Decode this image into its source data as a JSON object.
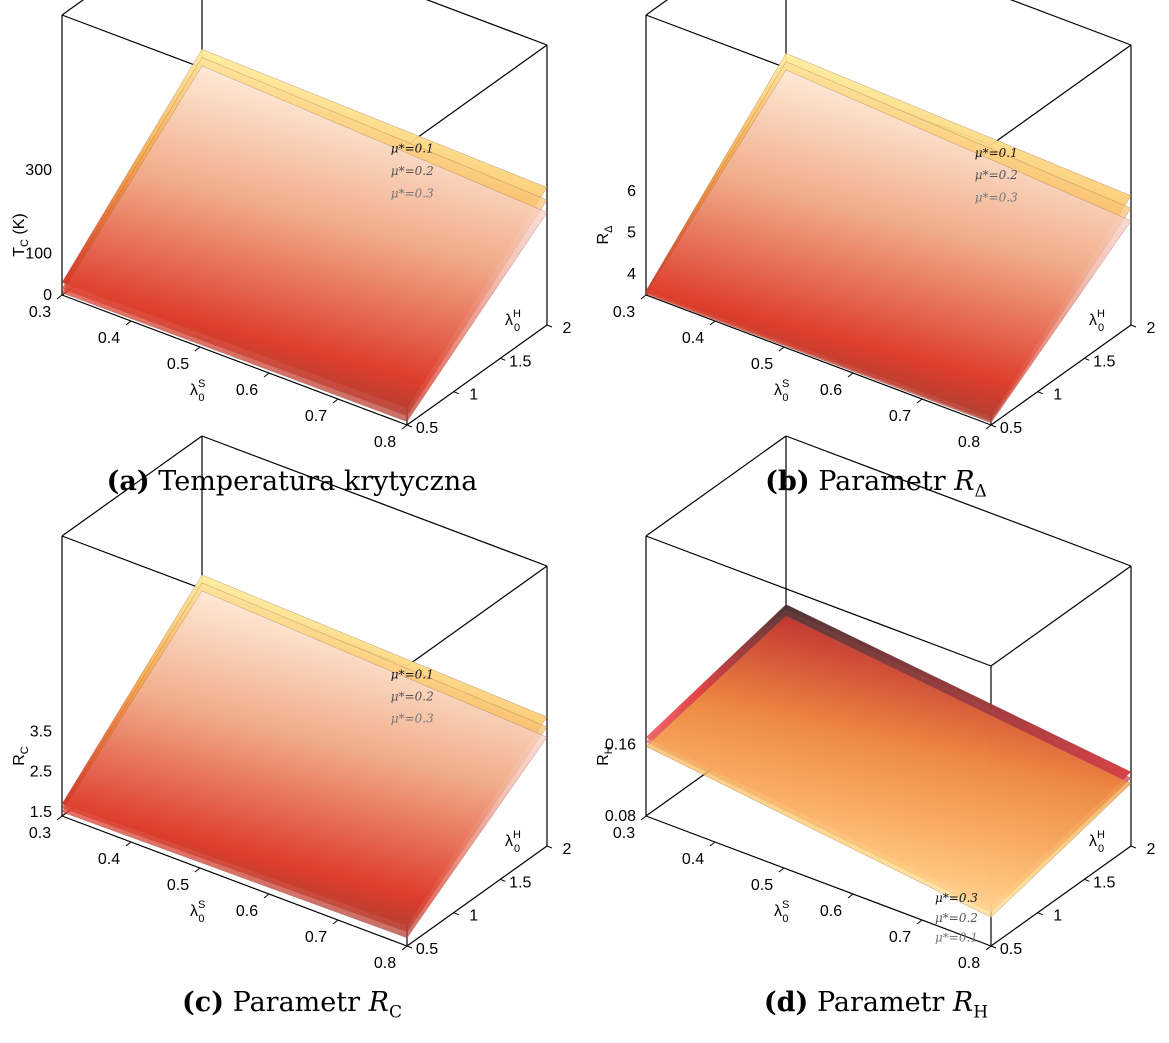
{
  "figure": {
    "panels": [
      {
        "id": "a",
        "caption_tag": "(a)",
        "caption_text": "Temperatura krytyczna",
        "caption_symbol": "",
        "caption_sub": "",
        "z_axis_label": "T",
        "z_axis_label_sub": "C",
        "z_axis_label_suffix": " (K)",
        "x_axis_label": "λ",
        "x_axis_label_sub": "0",
        "x_axis_label_sup": "S",
        "y_axis_label": "λ",
        "y_axis_label_sub": "0",
        "y_axis_label_sup": "H"
      },
      {
        "id": "b",
        "caption_tag": "(b)",
        "caption_text": "Parametr ",
        "caption_symbol": "R",
        "caption_sub": "Δ",
        "z_axis_label": "R",
        "z_axis_label_sub": "Δ",
        "z_axis_label_suffix": "",
        "x_axis_label": "λ",
        "x_axis_label_sub": "0",
        "x_axis_label_sup": "S",
        "y_axis_label": "λ",
        "y_axis_label_sub": "0",
        "y_axis_label_sup": "H"
      },
      {
        "id": "c",
        "caption_tag": "(c)",
        "caption_text": "Parametr ",
        "caption_symbol": "R",
        "caption_sub": "C",
        "z_axis_label": "R",
        "z_axis_label_sub": "C",
        "z_axis_label_suffix": "",
        "x_axis_label": "λ",
        "x_axis_label_sub": "0",
        "x_axis_label_sup": "S",
        "y_axis_label": "λ",
        "y_axis_label_sub": "0",
        "y_axis_label_sup": "H"
      },
      {
        "id": "d",
        "caption_tag": "(d)",
        "caption_text": "Parametr ",
        "caption_symbol": "R",
        "caption_sub": "H",
        "z_axis_label": "R",
        "z_axis_label_sub": "H",
        "z_axis_label_suffix": "",
        "x_axis_label": "λ",
        "x_axis_label_sub": "0",
        "x_axis_label_sup": "S",
        "y_axis_label": "λ",
        "y_axis_label_sub": "0",
        "y_axis_label_sup": "H"
      }
    ]
  },
  "chart_data": [
    {
      "type": "surface",
      "panel": "a",
      "x_label": "λ0^S",
      "y_label": "λ0^H",
      "z_label": "T_C (K)",
      "x_ticks": [
        "0.3",
        "0.4",
        "0.5",
        "0.6",
        "0.7",
        "0.8"
      ],
      "y_ticks": [
        "0.5",
        "1",
        "1.5",
        "2"
      ],
      "z_ticks": [
        "0",
        "100",
        "300"
      ],
      "x_range": [
        0.3,
        0.8
      ],
      "y_range": [
        0.5,
        2.0
      ],
      "z_range": [
        0,
        300
      ],
      "series": [
        {
          "name": "μ*=0.1",
          "corners": {
            "x0y0": 30,
            "x1y0": 40,
            "x0y1": 350,
            "x1y1": 330
          }
        },
        {
          "name": "μ*=0.2",
          "corners": {
            "x0y0": 15,
            "x1y0": 22,
            "x0y1": 330,
            "x1y1": 300
          }
        },
        {
          "name": "μ*=0.3",
          "corners": {
            "x0y0": 5,
            "x1y0": 8,
            "x0y1": 310,
            "x1y1": 270
          }
        }
      ]
    },
    {
      "type": "surface",
      "panel": "b",
      "x_label": "λ0^S",
      "y_label": "λ0^H",
      "z_label": "R_Δ",
      "x_ticks": [
        "0.3",
        "0.4",
        "0.5",
        "0.6",
        "0.7",
        "0.8"
      ],
      "y_ticks": [
        "0.5",
        "1",
        "1.5",
        "2"
      ],
      "z_ticks": [
        "4",
        "5",
        "6"
      ],
      "x_range": [
        0.3,
        0.8
      ],
      "y_range": [
        0.5,
        2.0
      ],
      "z_range": [
        3.5,
        6.5
      ],
      "series": [
        {
          "name": "μ*=0.1",
          "corners": {
            "x0y0": 3.6,
            "x1y0": 3.7,
            "x0y1": 6.9,
            "x1y1": 6.6
          }
        },
        {
          "name": "μ*=0.2",
          "corners": {
            "x0y0": 3.55,
            "x1y0": 3.6,
            "x0y1": 6.7,
            "x1y1": 6.3
          }
        },
        {
          "name": "μ*=0.3",
          "corners": {
            "x0y0": 3.52,
            "x1y0": 3.55,
            "x0y1": 6.5,
            "x1y1": 6.0
          }
        }
      ]
    },
    {
      "type": "surface",
      "panel": "c",
      "x_label": "λ0^S",
      "y_label": "λ0^H",
      "z_label": "R_C",
      "x_ticks": [
        "0.3",
        "0.4",
        "0.5",
        "0.6",
        "0.7",
        "0.8"
      ],
      "y_ticks": [
        "0.5",
        "1",
        "1.5",
        "2"
      ],
      "z_ticks": [
        "1.5",
        "2.5",
        "3.5"
      ],
      "x_range": [
        0.3,
        0.8
      ],
      "y_range": [
        0.5,
        2.0
      ],
      "z_range": [
        1.4,
        4.5
      ],
      "series": [
        {
          "name": "μ*=0.1",
          "corners": {
            "x0y0": 1.7,
            "x1y0": 1.9,
            "x0y1": 4.9,
            "x1y1": 4.6
          }
        },
        {
          "name": "μ*=0.2",
          "corners": {
            "x0y0": 1.6,
            "x1y0": 1.75,
            "x0y1": 4.7,
            "x1y1": 4.35
          }
        },
        {
          "name": "μ*=0.3",
          "corners": {
            "x0y0": 1.5,
            "x1y0": 1.6,
            "x0y1": 4.5,
            "x1y1": 4.1
          }
        }
      ]
    },
    {
      "type": "surface",
      "panel": "d",
      "x_label": "λ0^S",
      "y_label": "λ0^H",
      "z_label": "R_H",
      "x_ticks": [
        "0.3",
        "0.4",
        "0.5",
        "0.6",
        "0.7",
        "0.8"
      ],
      "y_ticks": [
        "0.5",
        "1",
        "1.5",
        "2"
      ],
      "z_ticks": [
        "0.08",
        "0.16"
      ],
      "x_range": [
        0.3,
        0.8
      ],
      "y_range": [
        0.5,
        2.0
      ],
      "z_range": [
        0.08,
        0.22
      ],
      "series": [
        {
          "name": "μ*=0.3",
          "corners": {
            "x0y0": 0.168,
            "x1y0": 0.125,
            "x0y1": 0.205,
            "x1y1": 0.163
          }
        },
        {
          "name": "μ*=0.2",
          "corners": {
            "x0y0": 0.163,
            "x1y0": 0.118,
            "x0y1": 0.198,
            "x1y1": 0.156
          }
        },
        {
          "name": "μ*=0.1",
          "corners": {
            "x0y0": 0.158,
            "x1y0": 0.112,
            "x0y1": 0.192,
            "x1y1": 0.15
          }
        }
      ]
    }
  ]
}
